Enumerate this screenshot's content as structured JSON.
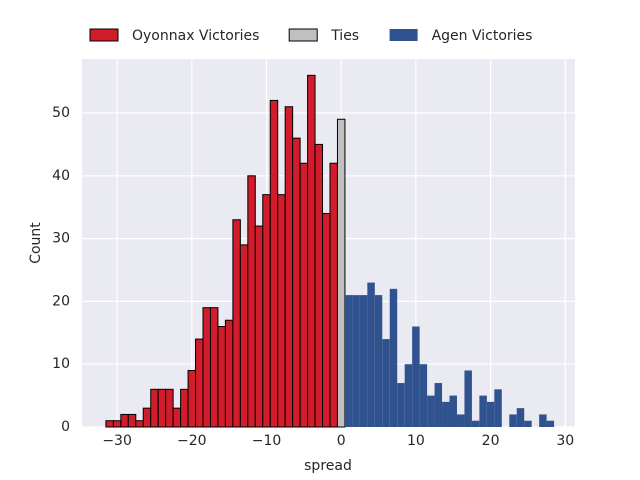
{
  "chart_data": {
    "type": "histogram",
    "xlabel": "spread",
    "ylabel": "Count",
    "series": [
      {
        "name": "Oyonnax Victories",
        "color": "#d01c2b",
        "edgecolor": "#000000",
        "bins": [
          -31.5,
          -30.5,
          -29.5,
          -28.5,
          -27.5,
          -26.5,
          -25.5,
          -24.5,
          -23.5,
          -22.5,
          -21.5,
          -20.5,
          -19.5,
          -18.5,
          -17.5,
          -16.5,
          -15.5,
          -14.5,
          -13.5,
          -12.5,
          -11.5,
          -10.5,
          -9.5,
          -8.5,
          -7.5,
          -6.5,
          -5.5,
          -4.5,
          -3.5,
          -2.5,
          -1.5,
          -0.5
        ],
        "values": [
          1,
          1,
          2,
          2,
          1,
          3,
          6,
          6,
          6,
          3,
          6,
          9,
          14,
          19,
          19,
          16,
          17,
          33,
          29,
          40,
          32,
          37,
          52,
          37,
          51,
          46,
          42,
          56,
          45,
          34,
          42
        ]
      },
      {
        "name": "Ties",
        "color": "#c0c0c0",
        "edgecolor": "#000000",
        "bins": [
          -0.5,
          0.5
        ],
        "values": [
          49
        ]
      },
      {
        "name": "Agen Victories",
        "color": "#30528f",
        "edgecolor": null,
        "bins": [
          0.5,
          1.5,
          2.5,
          3.5,
          4.5,
          5.5,
          6.5,
          7.5,
          8.5,
          9.5,
          10.5,
          11.5,
          12.5,
          13.5,
          14.5,
          15.5,
          16.5,
          17.5,
          18.5,
          19.5,
          20.5,
          21.5,
          22.5,
          23.5,
          24.5,
          25.5,
          26.5,
          27.5,
          28.5
        ],
        "values": [
          21,
          21,
          21,
          23,
          21,
          14,
          22,
          7,
          10,
          16,
          10,
          5,
          7,
          4,
          5,
          2,
          9,
          1,
          5,
          4,
          6,
          0,
          2,
          3,
          1,
          0,
          2,
          1
        ]
      }
    ],
    "xlim": [
      -34.7,
      31.3
    ],
    "ylim": [
      0,
      58.6
    ],
    "xticks": [
      {
        "value": -30,
        "label": "−30"
      },
      {
        "value": -20,
        "label": "−20"
      },
      {
        "value": -10,
        "label": "−10"
      },
      0,
      10,
      20,
      30
    ],
    "yticks": [
      0,
      10,
      20,
      30,
      40,
      50
    ],
    "grid": true,
    "legend": "top"
  }
}
